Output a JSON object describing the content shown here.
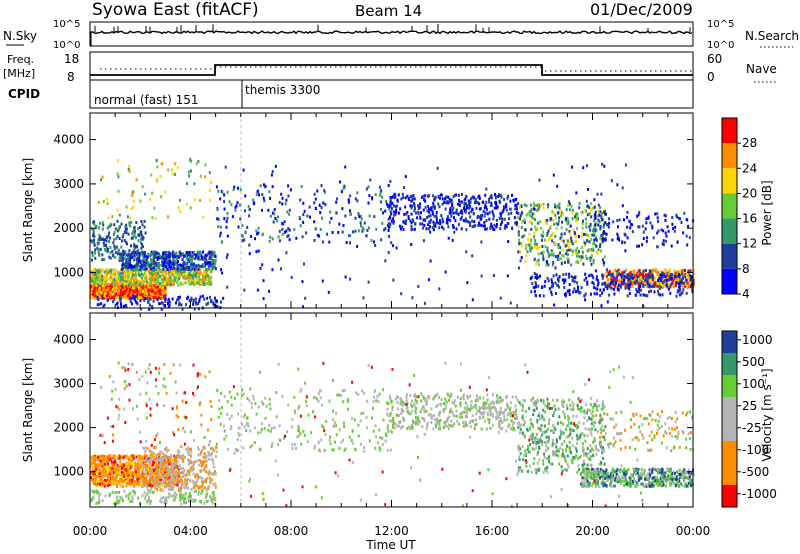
{
  "header": {
    "station": "Syowa East (fitACF)",
    "beam": "Beam 14",
    "date": "01/Dec/2009"
  },
  "nsky_panel": {
    "left_label": "N.Sky",
    "right_label": "N.Search",
    "left_ticks": [
      "10^5",
      "10^0"
    ],
    "right_ticks": [
      "10^5",
      "10^0"
    ]
  },
  "freq_panel": {
    "left_label_1": "Freq.",
    "left_label_2": "[MHz]",
    "left_ticks": [
      "18",
      "8"
    ],
    "right_label": "Nave",
    "right_ticks": [
      "60",
      "0"
    ]
  },
  "cpid_panel": {
    "label": "CPID",
    "modes": [
      "normal (fast) 151",
      "themis 3300"
    ]
  },
  "colors": {
    "red": "#ff0000",
    "orange": "#ff8c00",
    "yellow": "#ffd400",
    "green": "#66cc33",
    "teal": "#339966",
    "navy": "#1f3f9f",
    "blue": "#0000ff",
    "gray": "#b4b4b4"
  },
  "chart_data": [
    {
      "type": "heatmap",
      "name": "power",
      "ylabel": "Slant Range [km]",
      "yticks": [
        "1000",
        "2000",
        "3000",
        "4000"
      ],
      "ylim": [
        200,
        4600
      ],
      "xlim": [
        "00:00",
        "24:00"
      ],
      "colorbar": {
        "label": "Power [dB]",
        "ticks": [
          "4",
          "8",
          "12",
          "16",
          "20",
          "24",
          "28"
        ],
        "colors": [
          "#0000ff",
          "#1f3f9f",
          "#339966",
          "#66cc33",
          "#ffd400",
          "#ff8c00",
          "#ff0000"
        ]
      }
    },
    {
      "type": "heatmap",
      "name": "velocity",
      "ylabel": "Slant Range [km]",
      "yticks": [
        "1000",
        "2000",
        "3000",
        "4000"
      ],
      "ylim": [
        200,
        4600
      ],
      "xlim": [
        "00:00",
        "24:00"
      ],
      "colorbar": {
        "label": "Velocity [m s⁻¹]",
        "ticks": [
          "1000",
          "500",
          "100",
          "25",
          "-25",
          "-100",
          "-500",
          "-1000"
        ],
        "colors": [
          "#1f3f9f",
          "#339966",
          "#66cc33",
          "#b4b4b4",
          "#b4b4b4",
          "#ff8c00",
          "#ff8c00",
          "#ff0000"
        ]
      }
    }
  ],
  "x_axis": {
    "ticks": [
      "00:00",
      "04:00",
      "08:00",
      "12:00",
      "16:00",
      "20:00",
      "00:00"
    ],
    "label": "Time UT"
  }
}
